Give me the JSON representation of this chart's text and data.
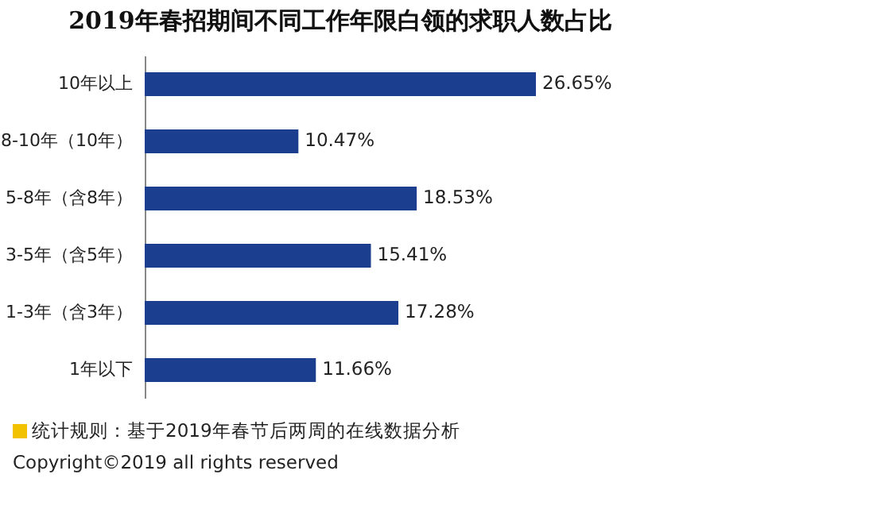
{
  "chart_data": {
    "type": "bar",
    "orientation": "horizontal",
    "title": "2019年春招期间不同工作年限白领的求职人数占比",
    "categories": [
      "10年以上",
      "8-10年（10年）",
      "5-8年（含8年）",
      "3-5年（含5年）",
      "1-3年（含3年）",
      "1年以下"
    ],
    "values": [
      26.65,
      10.47,
      18.53,
      15.41,
      17.28,
      11.66
    ],
    "value_labels": [
      "26.65%",
      "10.47%",
      "18.53%",
      "15.41%",
      "17.28%",
      "11.66%"
    ],
    "color": "#1b3f8e",
    "tick_labels": "y",
    "annotations": [
      "统计规则：基于2019年春节后两周的在线数据分析",
      "Copyright©2019 all rights reserved"
    ]
  }
}
